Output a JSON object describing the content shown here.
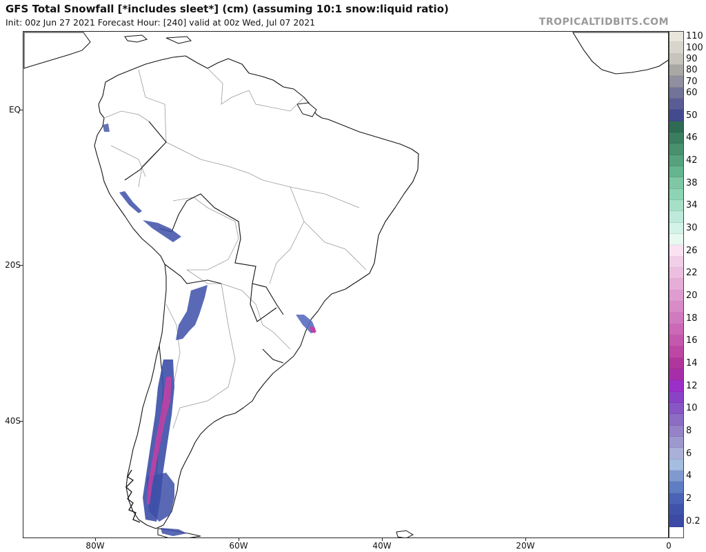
{
  "header": {
    "title": "GFS Total Snowfall [*includes sleet*] (cm) (assuming 10:1 snow:liquid ratio)",
    "subtitle": "Init: 00z Jun 27 2021   Forecast Hour: [240]   valid at 00z Wed, Jul 07 2021",
    "brand": "TROPICALTIDBITS.COM"
  },
  "axes": {
    "lat_labels": [
      "EQ",
      "20S",
      "40S"
    ],
    "lon_labels": [
      "80W",
      "60W",
      "40W",
      "20W",
      "0"
    ]
  },
  "colors": {
    "land_outline": "#111111",
    "border_thin": "#9a9a9a",
    "snow_light": "#3c4fa8",
    "snow_heavy": "#c43fa3"
  },
  "legend": {
    "levels": [
      {
        "label": "110",
        "color": "#e8e6dc"
      },
      {
        "label": "100",
        "color": "#d8d6cc"
      },
      {
        "label": "90",
        "color": "#c6c4bc"
      },
      {
        "label": "80",
        "color": "#aaa8a4"
      },
      {
        "label": "70",
        "color": "#8f8f9f"
      },
      {
        "label": "60",
        "color": "#727398"
      },
      {
        "label": "",
        "color": "#5a5d95"
      },
      {
        "label": "50",
        "color": "#434a8e"
      },
      {
        "label": "",
        "color": "#2e6b52"
      },
      {
        "label": "46",
        "color": "#3a7e60"
      },
      {
        "label": "",
        "color": "#48906e"
      },
      {
        "label": "42",
        "color": "#56a27e"
      },
      {
        "label": "",
        "color": "#64b590"
      },
      {
        "label": "38",
        "color": "#7fc7a5"
      },
      {
        "label": "",
        "color": "#8dd4b4"
      },
      {
        "label": "34",
        "color": "#a6e0c7"
      },
      {
        "label": "",
        "color": "#bdeadb"
      },
      {
        "label": "30",
        "color": "#d3f2e8"
      },
      {
        "label": "",
        "color": "#e8f9f2"
      },
      {
        "label": "26",
        "color": "#fbe2f2"
      },
      {
        "label": "",
        "color": "#f2cfe8"
      },
      {
        "label": "22",
        "color": "#ecbee0"
      },
      {
        "label": "",
        "color": "#e6add8"
      },
      {
        "label": "20",
        "color": "#df9cd0"
      },
      {
        "label": "",
        "color": "#d98bc7"
      },
      {
        "label": "18",
        "color": "#d27abf"
      },
      {
        "label": "",
        "color": "#cb69b6"
      },
      {
        "label": "16",
        "color": "#c458ad"
      },
      {
        "label": "",
        "color": "#bd47a4"
      },
      {
        "label": "14",
        "color": "#b0369b"
      },
      {
        "label": "",
        "color": "#a62ea8"
      },
      {
        "label": "12",
        "color": "#9b2fc8"
      },
      {
        "label": "",
        "color": "#8a42c7"
      },
      {
        "label": "10",
        "color": "#8857c4"
      },
      {
        "label": "",
        "color": "#8b6dc4"
      },
      {
        "label": "8",
        "color": "#9683c7"
      },
      {
        "label": "",
        "color": "#9d99cf"
      },
      {
        "label": "6",
        "color": "#a9b1d8"
      },
      {
        "label": "",
        "color": "#a4bde0"
      },
      {
        "label": "4",
        "color": "#7f9ad0"
      },
      {
        "label": "",
        "color": "#5f7dc2"
      },
      {
        "label": "2",
        "color": "#4a63b5"
      },
      {
        "label": "",
        "color": "#3f53aa"
      },
      {
        "label": "0.2",
        "color": "#3b4aa4"
      },
      {
        "label": "",
        "color": "#ffffff"
      }
    ]
  }
}
